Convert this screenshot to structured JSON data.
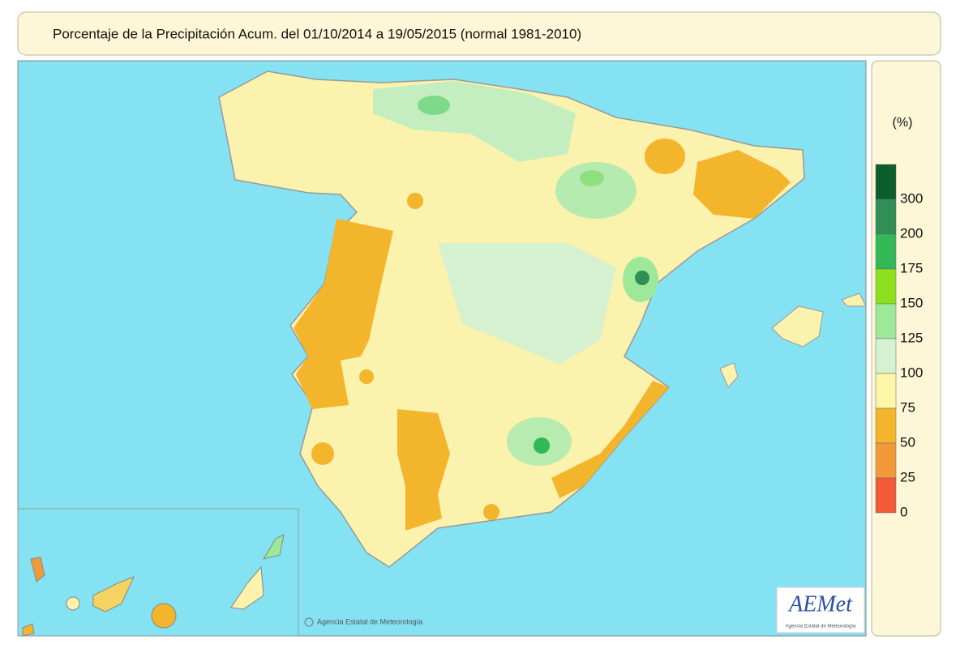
{
  "header": {
    "title": "Porcentaje de la Precipitación Acum. del 01/10/2014 a  19/05/2015  (normal 1981-2010)"
  },
  "legend": {
    "unit": "(%)",
    "levels": [
      {
        "value": 300,
        "color": "#0b5e2c"
      },
      {
        "value": 200,
        "color": "#2f8f55"
      },
      {
        "value": 175,
        "color": "#34b857"
      },
      {
        "value": 150,
        "color": "#8fe01c"
      },
      {
        "value": 125,
        "color": "#9ee89a"
      },
      {
        "value": 100,
        "color": "#d4f2d0"
      },
      {
        "value": 75,
        "color": "#fdf5a8"
      },
      {
        "value": 50,
        "color": "#f3b52c"
      },
      {
        "value": 25,
        "color": "#f29a3a"
      },
      {
        "value": 0,
        "color": "#f25a3a"
      }
    ]
  },
  "credits": {
    "copyright": "Agencia Estatal de Meteorología",
    "logo": "AEMet",
    "logo_subtitle": "Agencia Estatal de Meteorología"
  }
}
